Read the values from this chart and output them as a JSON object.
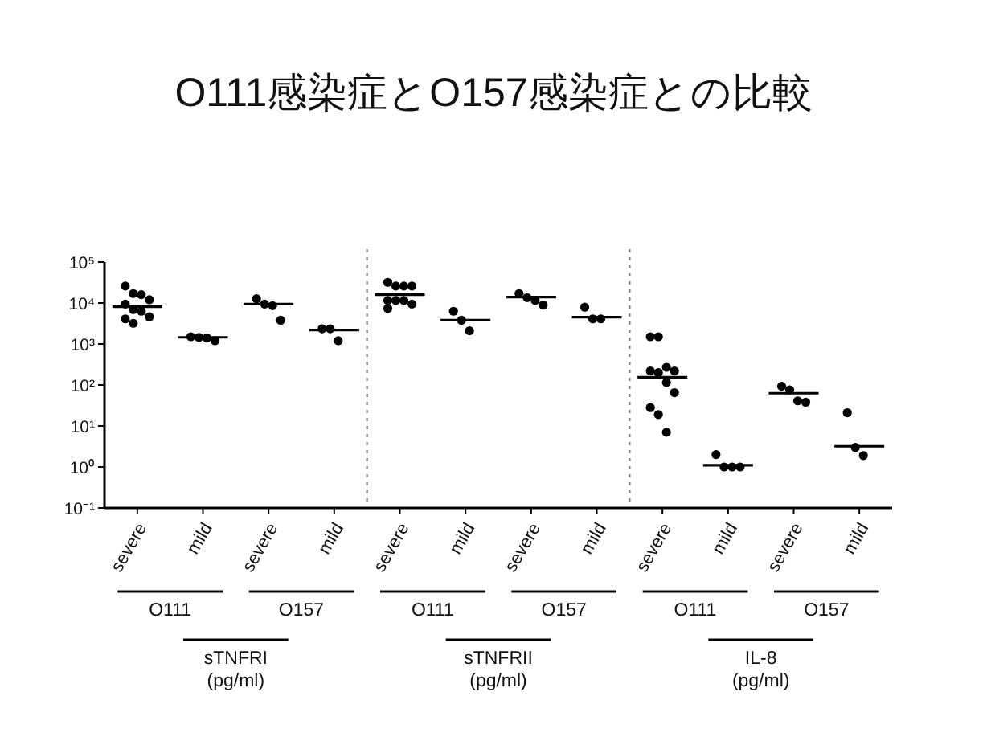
{
  "chart_data": {
    "type": "scatter",
    "title": "O111感染症とO157感染症との比較",
    "categories": [
      "severe",
      "mild",
      "severe",
      "mild",
      "severe",
      "mild",
      "severe",
      "mild",
      "severe",
      "mild",
      "severe",
      "mild"
    ],
    "log": true,
    "ylim": [
      0.1,
      100000
    ],
    "yticks": [
      {
        "value": 0.1,
        "label": "10⁻¹"
      },
      {
        "value": 1,
        "label": "10⁰"
      },
      {
        "value": 10,
        "label": "10¹"
      },
      {
        "value": 100,
        "label": "10²"
      },
      {
        "value": 1000,
        "label": "10³"
      },
      {
        "value": 10000,
        "label": "10⁴"
      },
      {
        "value": 100000,
        "label": "10⁵"
      }
    ],
    "marker": "circle",
    "grid": false,
    "annotations": [
      "O111",
      "O157",
      "O111",
      "O157",
      "O111",
      "O157",
      "sTNFRI\n(pg/ml)",
      "sTNFRII\n(pg/ml)",
      "IL-8\n(pg/ml)"
    ],
    "series": [
      {
        "type": "box",
        "color": "#000000",
        "boxes": [
          {
            "low": 8100,
            "q1": 8100,
            "median": 8100,
            "q3": 8100,
            "high": 8100
          },
          {
            "low": 1450,
            "q1": 1450,
            "median": 1450,
            "q3": 1450,
            "high": 1450
          },
          {
            "low": 9400,
            "q1": 9400,
            "median": 9400,
            "q3": 9400,
            "high": 9400
          },
          {
            "low": 2200,
            "q1": 2200,
            "median": 2200,
            "q3": 2200,
            "high": 2200
          },
          {
            "low": 16000,
            "q1": 16000,
            "median": 16000,
            "q3": 16000,
            "high": 16000
          },
          {
            "low": 3800,
            "q1": 3800,
            "median": 3800,
            "q3": 3800,
            "high": 3800
          },
          {
            "low": 14000,
            "q1": 14000,
            "median": 14000,
            "q3": 14000,
            "high": 14000
          },
          {
            "low": 4500,
            "q1": 4500,
            "median": 4500,
            "q3": 4500,
            "high": 4500
          },
          {
            "low": 155,
            "q1": 155,
            "median": 155,
            "q3": 155,
            "high": 155
          },
          {
            "low": 1.1,
            "q1": 1.1,
            "median": 1.1,
            "q3": 1.1,
            "high": 1.1
          },
          {
            "low": 63,
            "q1": 63,
            "median": 63,
            "q3": 63,
            "high": 63
          },
          {
            "low": 3.2,
            "q1": 3.2,
            "median": 3.2,
            "q3": 3.2,
            "high": 3.2
          }
        ]
      },
      {
        "color": "#000000",
        "values": [
          26000,
          1500,
          12700,
          2350,
          32000,
          6300,
          17000,
          7900,
          1500,
          2.0,
          93,
          21
        ]
      },
      {
        "color": "#000000",
        "values": [
          17000,
          1450,
          9400,
          2350,
          26000,
          3800,
          13500,
          4100,
          1500,
          1.0,
          76,
          3.0
        ]
      },
      {
        "color": "#000000",
        "values": [
          16000,
          1400,
          8600,
          1200,
          26000,
          2100,
          11500,
          4100,
          270,
          1.0,
          41,
          1.9
        ]
      },
      {
        "color": "#000000",
        "values": [
          12000,
          1200,
          3800,
          null,
          26000,
          null,
          8900,
          null,
          220,
          1.0,
          38,
          null
        ]
      },
      {
        "color": "#000000",
        "values": [
          9400,
          null,
          null,
          null,
          11500,
          null,
          null,
          null,
          220,
          null,
          null,
          null
        ]
      },
      {
        "color": "#000000",
        "values": [
          6900,
          null,
          null,
          null,
          11500,
          null,
          null,
          null,
          200,
          null,
          null,
          null
        ]
      },
      {
        "color": "#000000",
        "values": [
          6300,
          null,
          null,
          null,
          11500,
          null,
          null,
          null,
          115,
          null,
          null,
          null
        ]
      },
      {
        "color": "#000000",
        "values": [
          4600,
          null,
          null,
          null,
          9400,
          null,
          null,
          null,
          65,
          null,
          null,
          null
        ]
      },
      {
        "color": "#000000",
        "values": [
          4100,
          null,
          null,
          null,
          7400,
          null,
          null,
          null,
          28,
          null,
          null,
          null
        ]
      },
      {
        "color": "#000000",
        "values": [
          3200,
          null,
          null,
          null,
          null,
          null,
          null,
          null,
          19,
          null,
          null,
          null
        ]
      },
      {
        "color": "#000000",
        "values": [
          null,
          null,
          null,
          null,
          null,
          null,
          null,
          null,
          7,
          null,
          null,
          null
        ]
      }
    ]
  }
}
